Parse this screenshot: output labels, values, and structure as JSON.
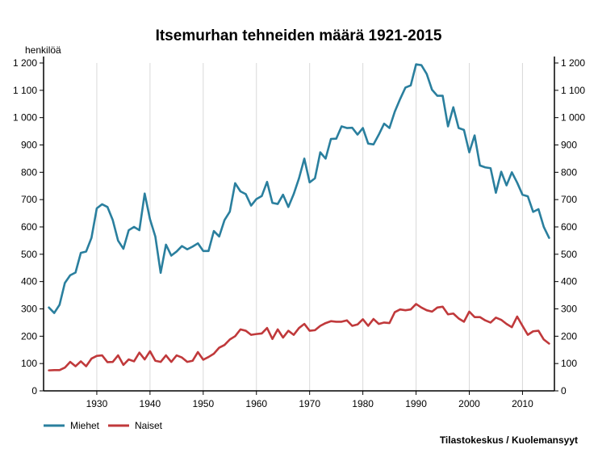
{
  "chart_data": {
    "type": "line",
    "title": "Itsemurhan tehneiden määrä 1921-2015",
    "ylabel": "henkilöä",
    "xlabel": "",
    "xlim": [
      1920,
      2016
    ],
    "ylim": [
      0,
      1200
    ],
    "grid": "vertical",
    "y_ticks": [
      0,
      100,
      200,
      300,
      400,
      500,
      600,
      700,
      800,
      900,
      1000,
      1100,
      1200
    ],
    "y_tick_labels": [
      "0",
      "100",
      "200",
      "300",
      "400",
      "500",
      "600",
      "700",
      "800",
      "900",
      "1 000",
      "1 100",
      "1 200"
    ],
    "x_ticks": [
      1930,
      1940,
      1950,
      1960,
      1970,
      1980,
      1990,
      2000,
      2010
    ],
    "x_tick_labels": [
      "1930",
      "1940",
      "1950",
      "1960",
      "1970",
      "1980",
      "1990",
      "2000",
      "2010"
    ],
    "x": [
      1921,
      1922,
      1923,
      1924,
      1925,
      1926,
      1927,
      1928,
      1929,
      1930,
      1931,
      1932,
      1933,
      1934,
      1935,
      1936,
      1937,
      1938,
      1939,
      1940,
      1941,
      1942,
      1943,
      1944,
      1945,
      1946,
      1947,
      1948,
      1949,
      1950,
      1951,
      1952,
      1953,
      1954,
      1955,
      1956,
      1957,
      1958,
      1959,
      1960,
      1961,
      1962,
      1963,
      1964,
      1965,
      1966,
      1967,
      1968,
      1969,
      1970,
      1971,
      1972,
      1973,
      1974,
      1975,
      1976,
      1977,
      1978,
      1979,
      1980,
      1981,
      1982,
      1983,
      1984,
      1985,
      1986,
      1987,
      1988,
      1989,
      1990,
      1991,
      1992,
      1993,
      1994,
      1995,
      1996,
      1997,
      1998,
      1999,
      2000,
      2001,
      2002,
      2003,
      2004,
      2005,
      2006,
      2007,
      2008,
      2009,
      2010,
      2011,
      2012,
      2013,
      2014,
      2015
    ],
    "series": [
      {
        "name": "Miehet",
        "color": "#2a7f9e",
        "values": [
          305,
          285,
          315,
          395,
          423,
          433,
          505,
          510,
          560,
          668,
          683,
          673,
          625,
          550,
          520,
          588,
          600,
          588,
          722,
          628,
          565,
          432,
          535,
          495,
          510,
          530,
          518,
          528,
          540,
          512,
          512,
          585,
          565,
          625,
          656,
          760,
          730,
          720,
          678,
          702,
          713,
          765,
          688,
          684,
          718,
          673,
          720,
          778,
          850,
          763,
          778,
          873,
          850,
          922,
          923,
          968,
          962,
          963,
          938,
          962,
          905,
          902,
          938,
          978,
          962,
          1022,
          1068,
          1110,
          1118,
          1195,
          1192,
          1160,
          1102,
          1080,
          1080,
          968,
          1038,
          962,
          955,
          873,
          935,
          825,
          818,
          815,
          725,
          802,
          752,
          800,
          762,
          718,
          712,
          655,
          665,
          600,
          560
        ]
      },
      {
        "name": "Naiset",
        "color": "#c0393b",
        "values": [
          75,
          76,
          76,
          85,
          106,
          90,
          108,
          90,
          118,
          128,
          130,
          105,
          106,
          130,
          95,
          115,
          108,
          140,
          115,
          145,
          110,
          106,
          130,
          106,
          130,
          122,
          106,
          110,
          142,
          114,
          124,
          136,
          158,
          168,
          188,
          200,
          225,
          220,
          205,
          208,
          210,
          230,
          190,
          225,
          195,
          220,
          205,
          230,
          245,
          220,
          222,
          238,
          248,
          255,
          253,
          253,
          258,
          238,
          243,
          262,
          238,
          263,
          245,
          250,
          248,
          288,
          298,
          295,
          298,
          318,
          305,
          295,
          290,
          305,
          308,
          280,
          283,
          265,
          253,
          290,
          270,
          270,
          258,
          250,
          268,
          260,
          245,
          233,
          272,
          238,
          205,
          218,
          220,
          188,
          173
        ]
      }
    ],
    "legend": [
      "Miehet",
      "Naiset"
    ],
    "legend_position": "bottom-left",
    "source": "Tilastokeskus / Kuolemansyyt"
  }
}
